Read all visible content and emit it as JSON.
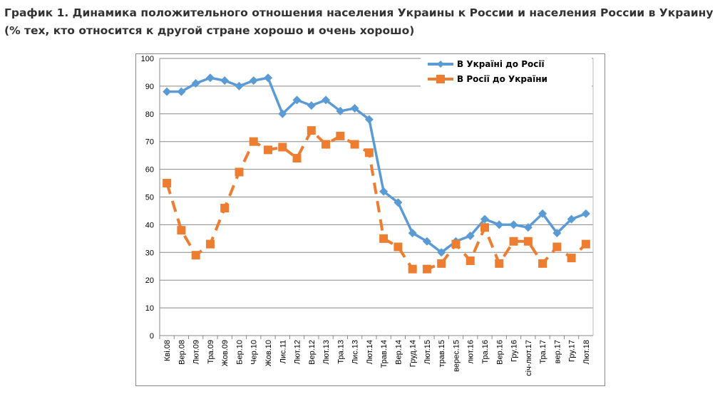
{
  "chart_data": {
    "type": "line",
    "title": "График 1. Динамика положительного отношения населения Украины к России и населения России в Украину (% тех, кто относится к другой стране хорошо и очень хорошо)",
    "xlabel": "",
    "ylabel": "",
    "ylim": [
      0,
      100
    ],
    "yticks": [
      0,
      10,
      20,
      30,
      40,
      50,
      60,
      70,
      80,
      90,
      100
    ],
    "grid": true,
    "legend_position": "top-right",
    "categories": [
      "Кві.08",
      "Вер.08",
      "Лют.09",
      "Тра.09",
      "Жов.09",
      "Бер.10",
      "Чер.10",
      "Жов.10",
      "Лис.11",
      "Лют.12",
      "Вер.12",
      "Лют.13",
      "Тра.13",
      "Лис.13",
      "Лют.14",
      "Трав.14",
      "Вер.14",
      "Груд.14",
      "Лют.15",
      "трав.15",
      "верес.15",
      "лют.16",
      "Тра.16",
      "Вер.16",
      "Гру.16",
      "січ-лют.17",
      "Тра.17",
      "вер.17",
      "Гру.17",
      "Лют.18"
    ],
    "series": [
      {
        "name": "В Україні до Росії",
        "color": "#5b9bd5",
        "marker": "diamond",
        "style": "solid",
        "values": [
          88,
          88,
          91,
          93,
          92,
          90,
          92,
          93,
          80,
          85,
          83,
          85,
          81,
          82,
          78,
          52,
          48,
          37,
          34,
          30,
          34,
          36,
          42,
          40,
          40,
          39,
          44,
          37,
          42,
          44
        ]
      },
      {
        "name": "В Росії до України",
        "color": "#ed7d31",
        "marker": "square",
        "style": "dashed",
        "values": [
          55,
          38,
          29,
          33,
          46,
          59,
          70,
          67,
          68,
          64,
          74,
          69,
          72,
          69,
          66,
          35,
          32,
          24,
          24,
          26,
          33,
          27,
          39,
          26,
          34,
          34,
          26,
          32,
          28,
          33
        ]
      }
    ]
  }
}
